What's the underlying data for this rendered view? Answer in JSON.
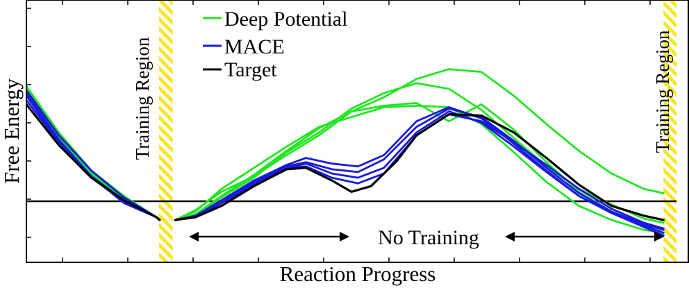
{
  "chart_data": {
    "type": "line",
    "xlabel": "Reaction Progress",
    "ylabel": "Free Energy",
    "xlim": [
      0,
      1
    ],
    "ylim": [
      -0.3,
      1.56
    ],
    "grid": false,
    "legend": {
      "position": "top-left",
      "entries": [
        {
          "name": "Deep Potential",
          "color": "#22e622"
        },
        {
          "name": "MACE",
          "color": "#1a1adc"
        },
        {
          "name": "Target",
          "color": "#000000"
        }
      ]
    },
    "annotations": {
      "training_region_left": "Training Region",
      "training_region_right": "Training Region",
      "no_training": "No Training",
      "training_regions": [
        [
          0.204,
          0.225
        ],
        [
          0.98,
          1.0
        ]
      ]
    },
    "series": [
      {
        "family": "Deep Potential",
        "color": "#22e622",
        "segments": [
          [
            [
              0.0,
              0.95
            ],
            [
              0.05,
              0.62
            ],
            [
              0.1,
              0.35
            ],
            [
              0.15,
              0.17
            ],
            [
              0.2,
              0.02
            ],
            [
              0.205,
              0.0
            ]
          ],
          [
            [
              0.229,
              0.0
            ],
            [
              0.26,
              0.04
            ],
            [
              0.3,
              0.17
            ],
            [
              0.35,
              0.32
            ],
            [
              0.4,
              0.49
            ],
            [
              0.45,
              0.65
            ],
            [
              0.5,
              0.77
            ],
            [
              0.55,
              0.87
            ],
            [
              0.6,
              1.0
            ],
            [
              0.65,
              1.07
            ],
            [
              0.7,
              1.05
            ],
            [
              0.75,
              0.88
            ],
            [
              0.8,
              0.68
            ],
            [
              0.85,
              0.49
            ],
            [
              0.9,
              0.33
            ],
            [
              0.95,
              0.22
            ],
            [
              0.98,
              0.19
            ]
          ]
        ]
      },
      {
        "family": "Deep Potential",
        "color": "#22e622",
        "segments": [
          [
            [
              0.0,
              0.92
            ],
            [
              0.05,
              0.6
            ],
            [
              0.1,
              0.33
            ],
            [
              0.15,
              0.15
            ],
            [
              0.2,
              0.02
            ],
            [
              0.205,
              0.0
            ]
          ],
          [
            [
              0.229,
              0.0
            ],
            [
              0.26,
              0.06
            ],
            [
              0.3,
              0.22
            ],
            [
              0.35,
              0.37
            ],
            [
              0.4,
              0.52
            ],
            [
              0.45,
              0.66
            ],
            [
              0.5,
              0.73
            ],
            [
              0.55,
              0.8
            ],
            [
              0.6,
              0.81
            ],
            [
              0.65,
              0.8
            ],
            [
              0.7,
              0.68
            ],
            [
              0.75,
              0.48
            ],
            [
              0.8,
              0.27
            ],
            [
              0.85,
              0.1
            ],
            [
              0.9,
              0.0
            ],
            [
              0.95,
              -0.07
            ],
            [
              0.98,
              -0.09
            ]
          ]
        ]
      },
      {
        "family": "Deep Potential",
        "color": "#22e622",
        "segments": [
          [
            [
              0.0,
              0.9
            ],
            [
              0.05,
              0.58
            ],
            [
              0.1,
              0.32
            ],
            [
              0.15,
              0.15
            ],
            [
              0.2,
              0.02
            ],
            [
              0.205,
              0.0
            ]
          ],
          [
            [
              0.229,
              0.0
            ],
            [
              0.26,
              0.03
            ],
            [
              0.3,
              0.16
            ],
            [
              0.35,
              0.3
            ],
            [
              0.4,
              0.48
            ],
            [
              0.45,
              0.62
            ],
            [
              0.5,
              0.79
            ],
            [
              0.55,
              0.9
            ],
            [
              0.6,
              0.97
            ],
            [
              0.65,
              0.93
            ],
            [
              0.7,
              0.78
            ],
            [
              0.75,
              0.58
            ],
            [
              0.8,
              0.38
            ],
            [
              0.85,
              0.22
            ],
            [
              0.9,
              0.11
            ],
            [
              0.95,
              0.01
            ],
            [
              0.98,
              -0.02
            ]
          ]
        ]
      },
      {
        "family": "Deep Potential",
        "color": "#22e622",
        "segments": [
          [
            [
              0.0,
              0.93
            ],
            [
              0.05,
              0.6
            ],
            [
              0.1,
              0.34
            ],
            [
              0.15,
              0.16
            ],
            [
              0.2,
              0.02
            ],
            [
              0.205,
              0.0
            ]
          ],
          [
            [
              0.229,
              0.0
            ],
            [
              0.26,
              0.07
            ],
            [
              0.3,
              0.2
            ],
            [
              0.35,
              0.31
            ],
            [
              0.4,
              0.46
            ],
            [
              0.45,
              0.6
            ],
            [
              0.5,
              0.77
            ],
            [
              0.55,
              0.81
            ],
            [
              0.6,
              0.83
            ],
            [
              0.65,
              0.7
            ],
            [
              0.7,
              0.82
            ],
            [
              0.75,
              0.64
            ],
            [
              0.8,
              0.41
            ],
            [
              0.85,
              0.2
            ],
            [
              0.9,
              0.06
            ],
            [
              0.95,
              -0.03
            ],
            [
              0.98,
              -0.1
            ]
          ]
        ]
      },
      {
        "family": "MACE",
        "color": "#1a1adc",
        "segments": [
          [
            [
              0.0,
              0.92
            ],
            [
              0.05,
              0.6
            ],
            [
              0.1,
              0.35
            ],
            [
              0.15,
              0.16
            ],
            [
              0.2,
              0.02
            ],
            [
              0.205,
              0.0
            ]
          ],
          [
            [
              0.229,
              0.0
            ],
            [
              0.26,
              0.03
            ],
            [
              0.3,
              0.14
            ],
            [
              0.35,
              0.28
            ],
            [
              0.4,
              0.39
            ],
            [
              0.43,
              0.44
            ],
            [
              0.47,
              0.4
            ],
            [
              0.51,
              0.38
            ],
            [
              0.55,
              0.46
            ],
            [
              0.6,
              0.7
            ],
            [
              0.65,
              0.8
            ],
            [
              0.7,
              0.72
            ],
            [
              0.75,
              0.54
            ],
            [
              0.8,
              0.35
            ],
            [
              0.85,
              0.17
            ],
            [
              0.9,
              0.05
            ],
            [
              0.95,
              -0.04
            ],
            [
              0.98,
              -0.09
            ]
          ]
        ]
      },
      {
        "family": "MACE",
        "color": "#1a1adc",
        "segments": [
          [
            [
              0.0,
              0.9
            ],
            [
              0.05,
              0.57
            ],
            [
              0.1,
              0.31
            ],
            [
              0.15,
              0.12
            ],
            [
              0.2,
              0.02
            ],
            [
              0.205,
              0.0
            ]
          ],
          [
            [
              0.229,
              0.0
            ],
            [
              0.26,
              0.02
            ],
            [
              0.3,
              0.12
            ],
            [
              0.35,
              0.27
            ],
            [
              0.4,
              0.38
            ],
            [
              0.43,
              0.41
            ],
            [
              0.47,
              0.36
            ],
            [
              0.51,
              0.34
            ],
            [
              0.55,
              0.43
            ],
            [
              0.6,
              0.66
            ],
            [
              0.65,
              0.79
            ],
            [
              0.7,
              0.73
            ],
            [
              0.75,
              0.56
            ],
            [
              0.8,
              0.37
            ],
            [
              0.85,
              0.19
            ],
            [
              0.9,
              0.06
            ],
            [
              0.95,
              -0.03
            ],
            [
              0.98,
              -0.07
            ]
          ]
        ]
      },
      {
        "family": "MACE",
        "color": "#1a1adc",
        "segments": [
          [
            [
              0.0,
              0.88
            ],
            [
              0.05,
              0.56
            ],
            [
              0.1,
              0.3
            ],
            [
              0.15,
              0.13
            ],
            [
              0.2,
              0.02
            ],
            [
              0.205,
              0.0
            ]
          ],
          [
            [
              0.229,
              0.0
            ],
            [
              0.26,
              0.03
            ],
            [
              0.3,
              0.13
            ],
            [
              0.35,
              0.26
            ],
            [
              0.4,
              0.37
            ],
            [
              0.43,
              0.4
            ],
            [
              0.47,
              0.33
            ],
            [
              0.51,
              0.3
            ],
            [
              0.55,
              0.37
            ],
            [
              0.6,
              0.62
            ],
            [
              0.65,
              0.77
            ],
            [
              0.7,
              0.69
            ],
            [
              0.75,
              0.52
            ],
            [
              0.8,
              0.34
            ],
            [
              0.85,
              0.17
            ],
            [
              0.9,
              0.05
            ],
            [
              0.95,
              -0.05
            ],
            [
              0.98,
              -0.11
            ]
          ]
        ]
      },
      {
        "family": "MACE",
        "color": "#1a1adc",
        "segments": [
          [
            [
              0.0,
              0.85
            ],
            [
              0.05,
              0.55
            ],
            [
              0.1,
              0.31
            ],
            [
              0.15,
              0.14
            ],
            [
              0.2,
              0.02
            ],
            [
              0.205,
              0.0
            ]
          ],
          [
            [
              0.229,
              0.0
            ],
            [
              0.26,
              0.02
            ],
            [
              0.3,
              0.12
            ],
            [
              0.35,
              0.25
            ],
            [
              0.4,
              0.37
            ],
            [
              0.43,
              0.38
            ],
            [
              0.47,
              0.3
            ],
            [
              0.51,
              0.26
            ],
            [
              0.55,
              0.33
            ],
            [
              0.6,
              0.6
            ],
            [
              0.65,
              0.75
            ],
            [
              0.7,
              0.7
            ],
            [
              0.75,
              0.55
            ],
            [
              0.8,
              0.39
            ],
            [
              0.85,
              0.22
            ],
            [
              0.9,
              0.08
            ],
            [
              0.95,
              -0.02
            ],
            [
              0.98,
              -0.06
            ]
          ]
        ]
      },
      {
        "family": "Target",
        "color": "#000000",
        "segments": [
          [
            [
              0.0,
              0.82
            ],
            [
              0.05,
              0.53
            ],
            [
              0.1,
              0.3
            ],
            [
              0.15,
              0.14
            ],
            [
              0.2,
              0.02
            ],
            [
              0.205,
              0.0
            ]
          ],
          [
            [
              0.229,
              0.0
            ],
            [
              0.26,
              0.02
            ],
            [
              0.3,
              0.1
            ],
            [
              0.35,
              0.24
            ],
            [
              0.4,
              0.36
            ],
            [
              0.43,
              0.37
            ],
            [
              0.47,
              0.28
            ],
            [
              0.5,
              0.2
            ],
            [
              0.53,
              0.24
            ],
            [
              0.57,
              0.42
            ],
            [
              0.6,
              0.6
            ],
            [
              0.65,
              0.75
            ],
            [
              0.7,
              0.74
            ],
            [
              0.75,
              0.62
            ],
            [
              0.8,
              0.44
            ],
            [
              0.85,
              0.25
            ],
            [
              0.9,
              0.1
            ],
            [
              0.95,
              0.03
            ],
            [
              0.98,
              0.0
            ]
          ]
        ]
      }
    ]
  }
}
